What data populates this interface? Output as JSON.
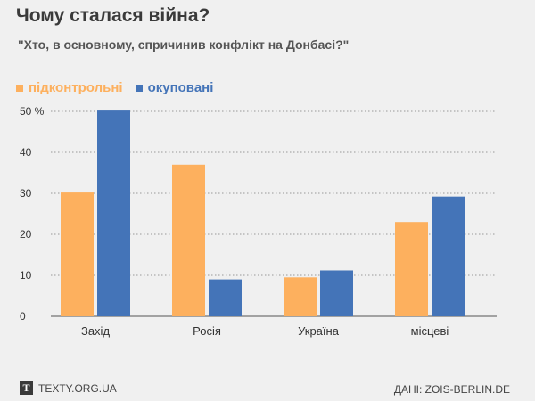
{
  "title": "Чому сталася війна?",
  "subtitle": "\"Хто, в основному, спричинив конфлікт на Донбасі?\"",
  "colors": {
    "series1": "#fdb05e",
    "series2": "#4474b8"
  },
  "footer": {
    "logo_letter": "T",
    "site": "TEXTY.ORG.UA",
    "source": "ДАНІ: ZOIS-BERLIN.DE"
  },
  "chart_data": {
    "type": "bar",
    "categories": [
      "Захід",
      "Росія",
      "Україна",
      "місцеві"
    ],
    "series": [
      {
        "name": "підконтрольні",
        "values": [
          30.2,
          37,
          9.5,
          23
        ]
      },
      {
        "name": "окуповані",
        "values": [
          50.2,
          9,
          11.2,
          29.2
        ]
      }
    ],
    "ylim": [
      0,
      50
    ],
    "yticks": [
      0,
      10,
      20,
      30,
      40,
      50
    ],
    "ytick_labels": [
      "0",
      "10",
      "20",
      "30",
      "40",
      "50 %"
    ],
    "grid": true,
    "legend": "top-left"
  }
}
